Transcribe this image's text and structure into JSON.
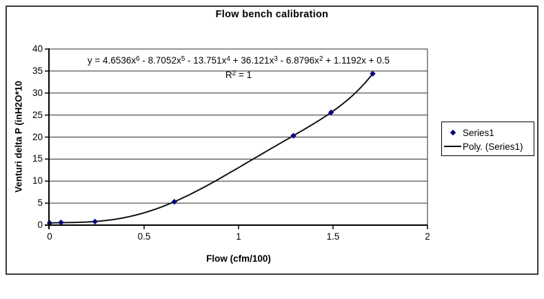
{
  "chart_data": {
    "type": "scatter",
    "title": "Flow bench calibration",
    "xlabel": "Flow (cfm/100)",
    "ylabel": "Venturi delta P (inH2O*10",
    "xlim": [
      0,
      2
    ],
    "ylim": [
      0,
      40
    ],
    "grid": "horizontal-only",
    "legend_position": "right",
    "x_axis": {
      "values": [
        0,
        0.5,
        1,
        1.5,
        2
      ],
      "labels": [
        "0",
        "0.5",
        "1",
        "1.5",
        "2"
      ]
    },
    "y_axis": {
      "values": [
        0,
        5,
        10,
        15,
        20,
        25,
        30,
        35,
        40
      ],
      "labels": [
        "0",
        "5",
        "10",
        "15",
        "20",
        "25",
        "30",
        "35",
        "40"
      ]
    },
    "series": [
      {
        "name": "Series1",
        "type": "scatter",
        "marker": "diamond",
        "points": [
          [
            0,
            0.5
          ],
          [
            0.06,
            0.6
          ],
          [
            0.24,
            0.8
          ],
          [
            0.66,
            5.3
          ],
          [
            1.29,
            20.3
          ],
          [
            1.49,
            25.6
          ],
          [
            1.71,
            34.4
          ]
        ]
      },
      {
        "name": "Poly. (Series1)",
        "type": "line",
        "poly_coefficients": [
          4.6536,
          -8.7052,
          -13.751,
          36.121,
          -6.8796,
          1.1192,
          0.5
        ],
        "x_range": [
          0,
          1.71
        ]
      }
    ],
    "annotations": {
      "equation_runs": [
        {
          "t": "y = 4.6536x",
          "sup": "6"
        },
        {
          "t": " - 8.7052x",
          "sup": "5"
        },
        {
          "t": " - 13.751x",
          "sup": "4"
        },
        {
          "t": " + 36.121x",
          "sup": "3"
        },
        {
          "t": " - 6.8796x",
          "sup": "2"
        },
        {
          "t": " + 1.1192x + 0.5",
          "sup": ""
        }
      ],
      "r2_runs": [
        {
          "t": "R",
          "sup": "2"
        },
        {
          "t": " = 1",
          "sup": ""
        }
      ]
    },
    "colors": {
      "marker": "#000080",
      "trendline": "#101018",
      "gridline": "#2a2a2a",
      "axis": "#000000",
      "text": "#000000",
      "plot_border": "#2a2a2a"
    }
  }
}
